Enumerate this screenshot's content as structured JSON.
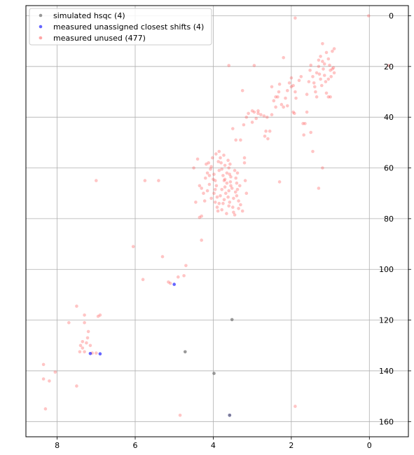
{
  "chart_data": {
    "type": "scatter",
    "title": "",
    "xlabel": "",
    "ylabel": "",
    "xlim": [
      8.8,
      -1.0
    ],
    "ylim": [
      166,
      -4
    ],
    "x_ticks": [
      8,
      6,
      4,
      2,
      0
    ],
    "y_ticks": [
      0,
      20,
      40,
      60,
      80,
      100,
      120,
      140,
      160
    ],
    "grid": true,
    "legend_position": "top-left",
    "series": [
      {
        "name": "simulated hsqc (4)",
        "color": "#808080",
        "alpha": 0.8,
        "points": [
          [
            4.72,
            132.5
          ],
          [
            3.52,
            119.8
          ],
          [
            3.98,
            141.0
          ],
          [
            3.58,
            157.5
          ]
        ]
      },
      {
        "name": "measured unassigned closest shifts (4)",
        "color": "#0000ff",
        "alpha": 0.6,
        "points": [
          [
            5.0,
            105.9
          ],
          [
            7.15,
            133.2
          ],
          [
            6.9,
            133.3
          ],
          [
            3.58,
            157.5
          ]
        ]
      },
      {
        "name": "measured unused (477)",
        "color": "#ff4040",
        "alpha": 0.3,
        "points": [
          [
            8.45,
            8.7
          ],
          [
            -0.5,
            19.6
          ],
          [
            0.02,
            0.0
          ],
          [
            1.9,
            0.9
          ],
          [
            3.6,
            19.6
          ],
          [
            2.95,
            19.6
          ],
          [
            1.9,
            154.0
          ],
          [
            8.35,
            137.5
          ],
          [
            8.35,
            143.2
          ],
          [
            8.2,
            144.0
          ],
          [
            8.3,
            155.0
          ],
          [
            8.05,
            140.5
          ],
          [
            7.7,
            121.0
          ],
          [
            7.5,
            114.5
          ],
          [
            7.5,
            146.0
          ],
          [
            7.3,
            118.0
          ],
          [
            7.3,
            121.0
          ],
          [
            7.25,
            129.0
          ],
          [
            7.3,
            132.5
          ],
          [
            7.15,
            130.0
          ],
          [
            7.1,
            133.0
          ],
          [
            7.4,
            130.0
          ],
          [
            7.35,
            131.0
          ],
          [
            7.42,
            132.5
          ],
          [
            7.22,
            127.0
          ],
          [
            7.35,
            128.5
          ],
          [
            6.95,
            118.5
          ],
          [
            6.9,
            118.0
          ],
          [
            7.2,
            124.5
          ],
          [
            7.0,
            133.0
          ],
          [
            6.05,
            91.0
          ],
          [
            5.8,
            104.0
          ],
          [
            5.3,
            95.0
          ],
          [
            5.15,
            105.0
          ],
          [
            5.1,
            105.5
          ],
          [
            4.9,
            103.0
          ],
          [
            4.75,
            102.5
          ],
          [
            4.7,
            98.5
          ],
          [
            4.85,
            157.5
          ],
          [
            7.0,
            65.0
          ],
          [
            5.75,
            65.0
          ],
          [
            5.4,
            65.0
          ],
          [
            4.3,
            88.5
          ],
          [
            4.35,
            79.5
          ],
          [
            4.3,
            79.0
          ],
          [
            4.22,
            73.0
          ],
          [
            4.25,
            70.0
          ],
          [
            4.3,
            68.0
          ],
          [
            4.35,
            67.0
          ],
          [
            4.2,
            64.0
          ],
          [
            4.15,
            62.0
          ],
          [
            4.1,
            63.0
          ],
          [
            4.1,
            66.5
          ],
          [
            4.15,
            69.0
          ],
          [
            4.18,
            58.5
          ],
          [
            4.05,
            59.5
          ],
          [
            4.02,
            56.0
          ],
          [
            3.98,
            62.5
          ],
          [
            3.95,
            65.0
          ],
          [
            3.92,
            67.0
          ],
          [
            3.98,
            70.0
          ],
          [
            4.05,
            72.0
          ],
          [
            3.95,
            73.5
          ],
          [
            3.9,
            75.5
          ],
          [
            3.88,
            77.0
          ],
          [
            3.85,
            53.5
          ],
          [
            3.82,
            56.0
          ],
          [
            3.8,
            58.0
          ],
          [
            3.78,
            60.5
          ],
          [
            3.75,
            63.0
          ],
          [
            3.72,
            65.0
          ],
          [
            3.7,
            67.5
          ],
          [
            3.68,
            70.0
          ],
          [
            3.72,
            72.5
          ],
          [
            3.75,
            74.0
          ],
          [
            3.78,
            76.5
          ],
          [
            3.62,
            57.0
          ],
          [
            3.6,
            60.0
          ],
          [
            3.58,
            62.5
          ],
          [
            3.56,
            65.5
          ],
          [
            3.55,
            67.0
          ],
          [
            3.6,
            69.0
          ],
          [
            3.62,
            71.5
          ],
          [
            3.58,
            73.5
          ],
          [
            3.5,
            75.5
          ],
          [
            3.48,
            77.5
          ],
          [
            3.45,
            78.5
          ],
          [
            3.45,
            61.0
          ],
          [
            3.42,
            64.0
          ],
          [
            3.4,
            66.0
          ],
          [
            3.38,
            68.5
          ],
          [
            3.4,
            71.0
          ],
          [
            3.35,
            73.0
          ],
          [
            3.3,
            74.5
          ],
          [
            3.35,
            76.0
          ],
          [
            3.25,
            77.0
          ],
          [
            3.2,
            56.0
          ],
          [
            3.18,
            65.0
          ],
          [
            3.15,
            70.0
          ],
          [
            3.65,
            62.0
          ],
          [
            3.7,
            59.0
          ],
          [
            3.85,
            61.0
          ],
          [
            4.5,
            60.0
          ],
          [
            4.4,
            56.5
          ],
          [
            4.0,
            64.5
          ],
          [
            3.95,
            68.5
          ],
          [
            3.9,
            71.5
          ],
          [
            3.66,
            78.0
          ],
          [
            4.45,
            73.5
          ],
          [
            3.5,
            44.5
          ],
          [
            3.42,
            49.0
          ],
          [
            3.3,
            49.0
          ],
          [
            3.22,
            43.0
          ],
          [
            3.15,
            40.0
          ],
          [
            3.25,
            29.5
          ],
          [
            3.1,
            38.5
          ],
          [
            3.0,
            42.0
          ],
          [
            2.95,
            38.0
          ],
          [
            2.9,
            40.5
          ],
          [
            2.85,
            37.5
          ],
          [
            2.78,
            39.0
          ],
          [
            2.7,
            39.5
          ],
          [
            2.65,
            45.5
          ],
          [
            2.68,
            47.5
          ],
          [
            2.6,
            48.5
          ],
          [
            2.55,
            45.5
          ],
          [
            2.5,
            39.0
          ],
          [
            2.45,
            33.5
          ],
          [
            2.5,
            28.0
          ],
          [
            2.4,
            32.0
          ],
          [
            2.35,
            32.0
          ],
          [
            2.32,
            30.0
          ],
          [
            2.3,
            27.0
          ],
          [
            2.25,
            35.0
          ],
          [
            2.2,
            36.0
          ],
          [
            2.15,
            32.5
          ],
          [
            2.1,
            29.5
          ],
          [
            2.05,
            26.5
          ],
          [
            2.0,
            24.5
          ],
          [
            2.2,
            16.5
          ],
          [
            1.95,
            27.5
          ],
          [
            1.9,
            30.0
          ],
          [
            1.88,
            32.5
          ],
          [
            1.92,
            38.5
          ],
          [
            1.95,
            38.0
          ],
          [
            1.8,
            25.5
          ],
          [
            1.75,
            24.0
          ],
          [
            1.7,
            42.5
          ],
          [
            1.65,
            42.5
          ],
          [
            1.68,
            47.0
          ],
          [
            1.55,
            26.0
          ],
          [
            1.52,
            21.5
          ],
          [
            1.5,
            19.5
          ],
          [
            1.45,
            24.0
          ],
          [
            1.42,
            26.5
          ],
          [
            1.4,
            28.0
          ],
          [
            1.38,
            30.0
          ],
          [
            1.35,
            22.5
          ],
          [
            1.3,
            20.0
          ],
          [
            1.28,
            23.0
          ],
          [
            1.25,
            25.0
          ],
          [
            1.22,
            27.5
          ],
          [
            1.2,
            18.0
          ],
          [
            1.18,
            21.0
          ],
          [
            1.15,
            23.5
          ],
          [
            1.12,
            26.0
          ],
          [
            1.2,
            11.0
          ],
          [
            1.1,
            14.5
          ],
          [
            1.05,
            17.0
          ],
          [
            1.02,
            19.5
          ],
          [
            1.0,
            21.5
          ],
          [
            0.98,
            24.0
          ],
          [
            0.95,
            21.0
          ],
          [
            0.92,
            20.5
          ],
          [
            0.9,
            22.5
          ],
          [
            0.95,
            14.0
          ],
          [
            0.9,
            13.0
          ],
          [
            1.1,
            30.5
          ],
          [
            1.05,
            32.0
          ],
          [
            1.0,
            32.0
          ],
          [
            1.2,
            60.0
          ],
          [
            1.3,
            68.0
          ],
          [
            1.45,
            53.5
          ],
          [
            2.3,
            65.5
          ],
          [
            3.2,
            58.0
          ],
          [
            2.85,
            38.5
          ],
          [
            2.62,
            40.0
          ],
          [
            3.0,
            37.5
          ],
          [
            1.5,
            46.0
          ],
          [
            1.6,
            38.0
          ],
          [
            2.0,
            28.0
          ],
          [
            2.1,
            35.5
          ],
          [
            2.4,
            36.0
          ],
          [
            1.3,
            17.5
          ],
          [
            1.25,
            16.0
          ],
          [
            1.15,
            19.0
          ],
          [
            1.05,
            25.0
          ],
          [
            1.35,
            32.0
          ],
          [
            1.6,
            31.0
          ],
          [
            3.7,
            64.5
          ],
          [
            3.65,
            66.0
          ],
          [
            3.55,
            63.5
          ],
          [
            3.52,
            68.0
          ],
          [
            3.78,
            68.5
          ],
          [
            3.82,
            71.0
          ],
          [
            3.85,
            74.0
          ],
          [
            3.6,
            75.0
          ],
          [
            3.48,
            72.0
          ],
          [
            3.43,
            69.5
          ],
          [
            4.07,
            60.5
          ],
          [
            4.12,
            58.0
          ],
          [
            3.87,
            57.5
          ],
          [
            3.93,
            54.5
          ],
          [
            3.73,
            55.0
          ],
          [
            3.57,
            58.5
          ],
          [
            3.38,
            62.0
          ],
          [
            3.32,
            67.0
          ]
        ]
      }
    ]
  }
}
